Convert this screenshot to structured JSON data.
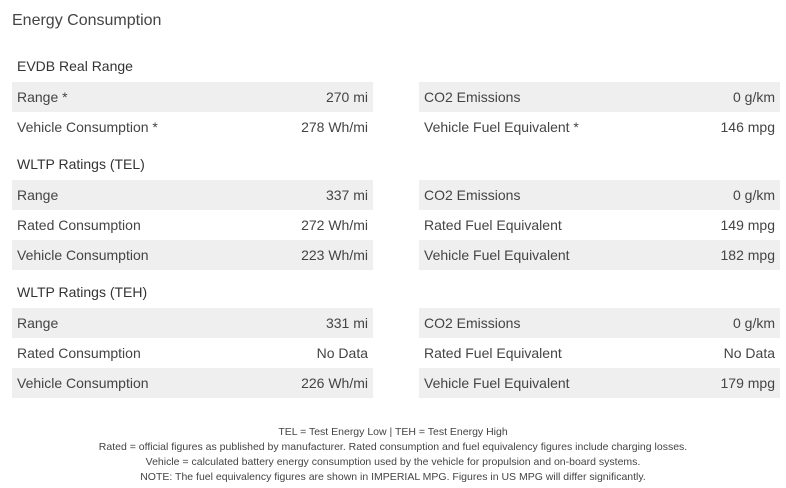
{
  "title": "Energy Consumption",
  "sections": [
    {
      "heading": "EVDB Real Range",
      "left": [
        {
          "label": "Range *",
          "value": "270 mi"
        },
        {
          "label": "Vehicle Consumption *",
          "value": "278 Wh/mi"
        }
      ],
      "right": [
        {
          "label": "CO2 Emissions",
          "value": "0 g/km"
        },
        {
          "label": "Vehicle Fuel Equivalent *",
          "value": "146 mpg"
        }
      ]
    },
    {
      "heading": "WLTP Ratings (TEL)",
      "left": [
        {
          "label": "Range",
          "value": "337 mi"
        },
        {
          "label": "Rated Consumption",
          "value": "272 Wh/mi"
        },
        {
          "label": "Vehicle Consumption",
          "value": "223 Wh/mi"
        }
      ],
      "right": [
        {
          "label": "CO2 Emissions",
          "value": "0 g/km"
        },
        {
          "label": "Rated Fuel Equivalent",
          "value": "149 mpg"
        },
        {
          "label": "Vehicle Fuel Equivalent",
          "value": "182 mpg"
        }
      ]
    },
    {
      "heading": "WLTP Ratings (TEH)",
      "left": [
        {
          "label": "Range",
          "value": "331 mi"
        },
        {
          "label": "Rated Consumption",
          "value": "No Data"
        },
        {
          "label": "Vehicle Consumption",
          "value": "226 Wh/mi"
        }
      ],
      "right": [
        {
          "label": "CO2 Emissions",
          "value": "0 g/km"
        },
        {
          "label": "Rated Fuel Equivalent",
          "value": "No Data"
        },
        {
          "label": "Vehicle Fuel Equivalent",
          "value": "179 mpg"
        }
      ]
    }
  ],
  "footer": [
    "TEL = Test Energy Low | TEH = Test Energy High",
    "Rated = official figures as published by manufacturer. Rated consumption and fuel equivalency figures include charging losses.",
    "Vehicle = calculated battery energy consumption used by the vehicle for propulsion and on-board systems.",
    "NOTE: The fuel equivalency figures are shown in IMPERIAL MPG. Figures in US MPG will differ significantly."
  ]
}
